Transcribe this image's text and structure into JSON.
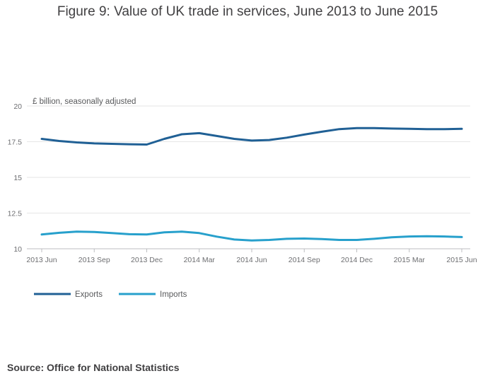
{
  "chart_data": {
    "type": "line",
    "title": "Figure 9: Value of UK trade in services, June 2013 to June 2015",
    "ylabel": "£ billion, seasonally adjusted",
    "xlabel": "",
    "ylim": [
      10,
      20
    ],
    "yticks": [
      10,
      12.5,
      15,
      17.5,
      20
    ],
    "ytick_labels": [
      "10",
      "12.5",
      "15",
      "17.5",
      "20"
    ],
    "xtick_labels": [
      "2013 Jun",
      "2013 Sep",
      "2013 Dec",
      "2014 Mar",
      "2014 Jun",
      "2014 Sep",
      "2014 Dec",
      "2015 Mar",
      "2015 Jun"
    ],
    "x": [
      "2013 Jun",
      "2013 Jul",
      "2013 Aug",
      "2013 Sep",
      "2013 Oct",
      "2013 Nov",
      "2013 Dec",
      "2014 Jan",
      "2014 Feb",
      "2014 Mar",
      "2014 Apr",
      "2014 May",
      "2014 Jun",
      "2014 Jul",
      "2014 Aug",
      "2014 Sep",
      "2014 Oct",
      "2014 Nov",
      "2014 Dec",
      "2015 Jan",
      "2015 Feb",
      "2015 Mar",
      "2015 Apr",
      "2015 May",
      "2015 Jun"
    ],
    "series": [
      {
        "name": "Exports",
        "color": "#206095",
        "values": [
          17.7,
          17.55,
          17.45,
          17.38,
          17.35,
          17.32,
          17.3,
          17.7,
          18.02,
          18.1,
          17.9,
          17.7,
          17.58,
          17.62,
          17.78,
          18.0,
          18.2,
          18.38,
          18.45,
          18.45,
          18.42,
          18.4,
          18.38,
          18.38,
          18.4
        ]
      },
      {
        "name": "Imports",
        "color": "#27a0cc",
        "values": [
          11.0,
          11.12,
          11.2,
          11.18,
          11.1,
          11.02,
          11.0,
          11.15,
          11.2,
          11.1,
          10.85,
          10.65,
          10.58,
          10.62,
          10.7,
          10.72,
          10.68,
          10.62,
          10.62,
          10.7,
          10.8,
          10.86,
          10.88,
          10.86,
          10.82
        ]
      }
    ],
    "grid": true,
    "legend_position": "bottom-left"
  },
  "source": "Source: Office for National Statistics"
}
